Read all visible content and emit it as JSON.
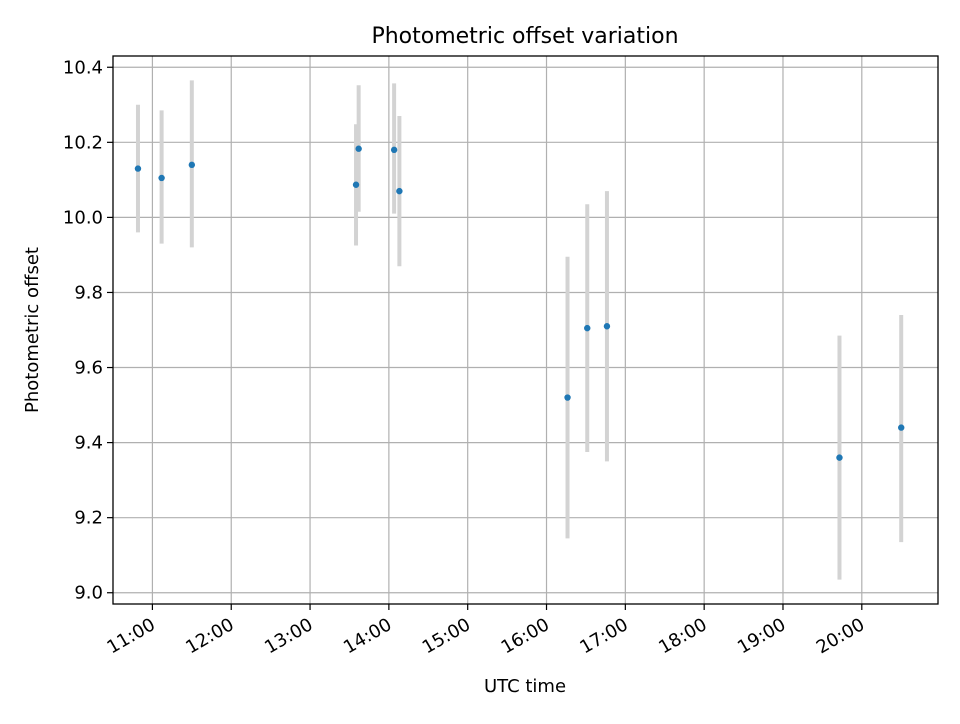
{
  "chart_data": {
    "type": "scatter",
    "title": "Photometric offset variation",
    "xlabel": "UTC time",
    "ylabel": "Photometric offset",
    "x_axis_kind": "time",
    "xlim": [
      "10:30",
      "20:58"
    ],
    "ylim": [
      8.97,
      10.43
    ],
    "x_ticks": [
      "11:00",
      "12:00",
      "13:00",
      "14:00",
      "15:00",
      "16:00",
      "17:00",
      "18:00",
      "19:00",
      "20:00"
    ],
    "y_ticks": [
      9.0,
      9.2,
      9.4,
      9.6,
      9.8,
      10.0,
      10.2,
      10.4
    ],
    "y_tick_labels": [
      "9.0",
      "9.2",
      "9.4",
      "9.6",
      "9.8",
      "10.0",
      "10.2",
      "10.4"
    ],
    "grid": true,
    "series": [
      {
        "marker_color": "#1f77b4",
        "errorbar_color": "#d3d3d3",
        "points": [
          {
            "x": "10:49",
            "y": 10.13,
            "err_low": 9.96,
            "err_high": 10.3
          },
          {
            "x": "11:07",
            "y": 10.105,
            "err_low": 9.93,
            "err_high": 10.285
          },
          {
            "x": "11:30",
            "y": 10.14,
            "err_low": 9.92,
            "err_high": 10.365
          },
          {
            "x": "13:35",
            "y": 10.087,
            "err_low": 9.925,
            "err_high": 10.248
          },
          {
            "x": "13:37",
            "y": 10.183,
            "err_low": 10.015,
            "err_high": 10.352
          },
          {
            "x": "14:04",
            "y": 10.18,
            "err_low": 10.01,
            "err_high": 10.357
          },
          {
            "x": "14:08",
            "y": 10.07,
            "err_low": 9.87,
            "err_high": 10.27
          },
          {
            "x": "16:16",
            "y": 9.52,
            "err_low": 9.145,
            "err_high": 9.895
          },
          {
            "x": "16:31",
            "y": 9.705,
            "err_low": 9.375,
            "err_high": 10.035
          },
          {
            "x": "16:46",
            "y": 9.71,
            "err_low": 9.35,
            "err_high": 10.07
          },
          {
            "x": "19:43",
            "y": 9.36,
            "err_low": 9.035,
            "err_high": 9.685
          },
          {
            "x": "20:30",
            "y": 9.44,
            "err_low": 9.135,
            "err_high": 9.74
          }
        ]
      }
    ]
  }
}
